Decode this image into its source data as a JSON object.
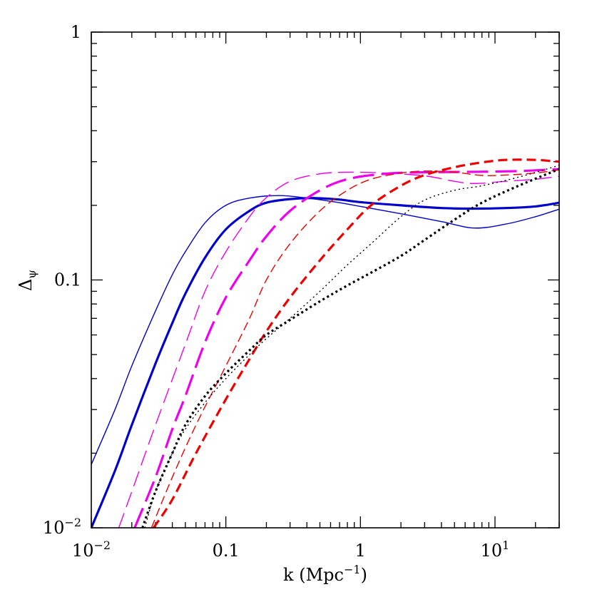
{
  "chart_data": {
    "type": "line",
    "title": "",
    "xlabel": "k (Mpc",
    "xlabel_sup": "−1",
    "xlabel_close": ")",
    "ylabel": "Δ",
    "ylabel_sub": "ψ",
    "xscale": "log",
    "yscale": "log",
    "xlim": [
      0.01,
      30
    ],
    "ylim": [
      0.01,
      1
    ],
    "grid": false,
    "x_tick_labels": [
      {
        "value": 0.01,
        "base": "10",
        "exp": "−2"
      },
      {
        "value": 0.1,
        "base": "0.1",
        "exp": ""
      },
      {
        "value": 1,
        "base": "1",
        "exp": ""
      },
      {
        "value": 10,
        "base": "10",
        "exp": "1"
      }
    ],
    "y_tick_labels": [
      {
        "value": 0.01,
        "base": "10",
        "exp": "−2"
      },
      {
        "value": 0.1,
        "base": "0.1",
        "exp": ""
      },
      {
        "value": 1,
        "base": "1",
        "exp": ""
      }
    ],
    "series": [
      {
        "color": "#0000cc",
        "width": 1.4,
        "dash": "",
        "points": [
          [
            0.01,
            0.018
          ],
          [
            0.015,
            0.03
          ],
          [
            0.02,
            0.045
          ],
          [
            0.03,
            0.075
          ],
          [
            0.04,
            0.105
          ],
          [
            0.05,
            0.13
          ],
          [
            0.07,
            0.17
          ],
          [
            0.1,
            0.2
          ],
          [
            0.15,
            0.214
          ],
          [
            0.25,
            0.219
          ],
          [
            0.4,
            0.214
          ],
          [
            0.7,
            0.205
          ],
          [
            1,
            0.198
          ],
          [
            2,
            0.185
          ],
          [
            4,
            0.172
          ],
          [
            7,
            0.162
          ],
          [
            12,
            0.168
          ],
          [
            20,
            0.18
          ],
          [
            30,
            0.193
          ]
        ]
      },
      {
        "color": "#0000cc",
        "width": 3.2,
        "dash": "",
        "points": [
          [
            0.01,
            0.01
          ],
          [
            0.015,
            0.017
          ],
          [
            0.02,
            0.026
          ],
          [
            0.03,
            0.046
          ],
          [
            0.04,
            0.067
          ],
          [
            0.05,
            0.088
          ],
          [
            0.07,
            0.123
          ],
          [
            0.1,
            0.16
          ],
          [
            0.15,
            0.19
          ],
          [
            0.2,
            0.205
          ],
          [
            0.3,
            0.212
          ],
          [
            0.45,
            0.214
          ],
          [
            0.7,
            0.211
          ],
          [
            1,
            0.206
          ],
          [
            2,
            0.2
          ],
          [
            4,
            0.195
          ],
          [
            7,
            0.194
          ],
          [
            12,
            0.195
          ],
          [
            20,
            0.198
          ],
          [
            30,
            0.205
          ]
        ]
      },
      {
        "color": "#ee00ee",
        "width": 1.4,
        "dash": "22,9",
        "points": [
          [
            0.016,
            0.01
          ],
          [
            0.02,
            0.014
          ],
          [
            0.03,
            0.026
          ],
          [
            0.05,
            0.055
          ],
          [
            0.07,
            0.09
          ],
          [
            0.1,
            0.13
          ],
          [
            0.15,
            0.18
          ],
          [
            0.2,
            0.215
          ],
          [
            0.3,
            0.25
          ],
          [
            0.5,
            0.268
          ],
          [
            0.8,
            0.272
          ],
          [
            1.5,
            0.27
          ],
          [
            3,
            0.263
          ],
          [
            5,
            0.25
          ],
          [
            7,
            0.245
          ],
          [
            12,
            0.25
          ],
          [
            20,
            0.255
          ],
          [
            30,
            0.262
          ]
        ]
      },
      {
        "color": "#ee00ee",
        "width": 3.2,
        "dash": "30,10",
        "points": [
          [
            0.021,
            0.01
          ],
          [
            0.03,
            0.016
          ],
          [
            0.04,
            0.025
          ],
          [
            0.05,
            0.034
          ],
          [
            0.07,
            0.056
          ],
          [
            0.1,
            0.085
          ],
          [
            0.15,
            0.12
          ],
          [
            0.2,
            0.15
          ],
          [
            0.3,
            0.19
          ],
          [
            0.5,
            0.23
          ],
          [
            0.8,
            0.255
          ],
          [
            1.5,
            0.268
          ],
          [
            3,
            0.272
          ],
          [
            7,
            0.273
          ],
          [
            15,
            0.275
          ],
          [
            30,
            0.28
          ]
        ]
      },
      {
        "color": "#ee0000",
        "width": 1.4,
        "dash": "12,6",
        "points": [
          [
            0.028,
            0.01
          ],
          [
            0.04,
            0.016
          ],
          [
            0.06,
            0.026
          ],
          [
            0.1,
            0.045
          ],
          [
            0.15,
            0.07
          ],
          [
            0.2,
            0.1
          ],
          [
            0.3,
            0.14
          ],
          [
            0.5,
            0.19
          ],
          [
            0.8,
            0.23
          ],
          [
            1.2,
            0.255
          ],
          [
            2,
            0.27
          ],
          [
            3,
            0.275
          ],
          [
            5,
            0.272
          ],
          [
            8,
            0.264
          ],
          [
            12,
            0.265
          ],
          [
            20,
            0.27
          ],
          [
            30,
            0.278
          ]
        ]
      },
      {
        "color": "#ee0000",
        "width": 3.2,
        "dash": "13,7",
        "points": [
          [
            0.029,
            0.01
          ],
          [
            0.04,
            0.013
          ],
          [
            0.06,
            0.02
          ],
          [
            0.1,
            0.033
          ],
          [
            0.15,
            0.048
          ],
          [
            0.2,
            0.062
          ],
          [
            0.3,
            0.085
          ],
          [
            0.5,
            0.12
          ],
          [
            0.8,
            0.16
          ],
          [
            1.2,
            0.2
          ],
          [
            2,
            0.24
          ],
          [
            3,
            0.265
          ],
          [
            5,
            0.285
          ],
          [
            8,
            0.298
          ],
          [
            12,
            0.305
          ],
          [
            20,
            0.305
          ],
          [
            30,
            0.3
          ]
        ]
      },
      {
        "color": "#000000",
        "width": 1.4,
        "dash": "2,4",
        "points": [
          [
            0.025,
            0.01
          ],
          [
            0.03,
            0.014
          ],
          [
            0.04,
            0.02
          ],
          [
            0.05,
            0.025
          ],
          [
            0.07,
            0.032
          ],
          [
            0.1,
            0.04
          ],
          [
            0.15,
            0.05
          ],
          [
            0.2,
            0.058
          ],
          [
            0.3,
            0.07
          ],
          [
            0.5,
            0.09
          ],
          [
            0.8,
            0.115
          ],
          [
            1.2,
            0.14
          ],
          [
            2,
            0.18
          ],
          [
            3,
            0.21
          ],
          [
            5,
            0.23
          ],
          [
            8,
            0.24
          ],
          [
            15,
            0.26
          ],
          [
            30,
            0.29
          ]
        ]
      },
      {
        "color": "#000000",
        "width": 3.2,
        "dash": "3,4",
        "points": [
          [
            0.024,
            0.01
          ],
          [
            0.03,
            0.014
          ],
          [
            0.04,
            0.02
          ],
          [
            0.05,
            0.026
          ],
          [
            0.07,
            0.034
          ],
          [
            0.1,
            0.042
          ],
          [
            0.15,
            0.052
          ],
          [
            0.2,
            0.06
          ],
          [
            0.3,
            0.069
          ],
          [
            0.5,
            0.082
          ],
          [
            0.8,
            0.095
          ],
          [
            1.2,
            0.107
          ],
          [
            2,
            0.125
          ],
          [
            3,
            0.145
          ],
          [
            5,
            0.175
          ],
          [
            8,
            0.205
          ],
          [
            15,
            0.24
          ],
          [
            30,
            0.28
          ]
        ]
      }
    ]
  }
}
